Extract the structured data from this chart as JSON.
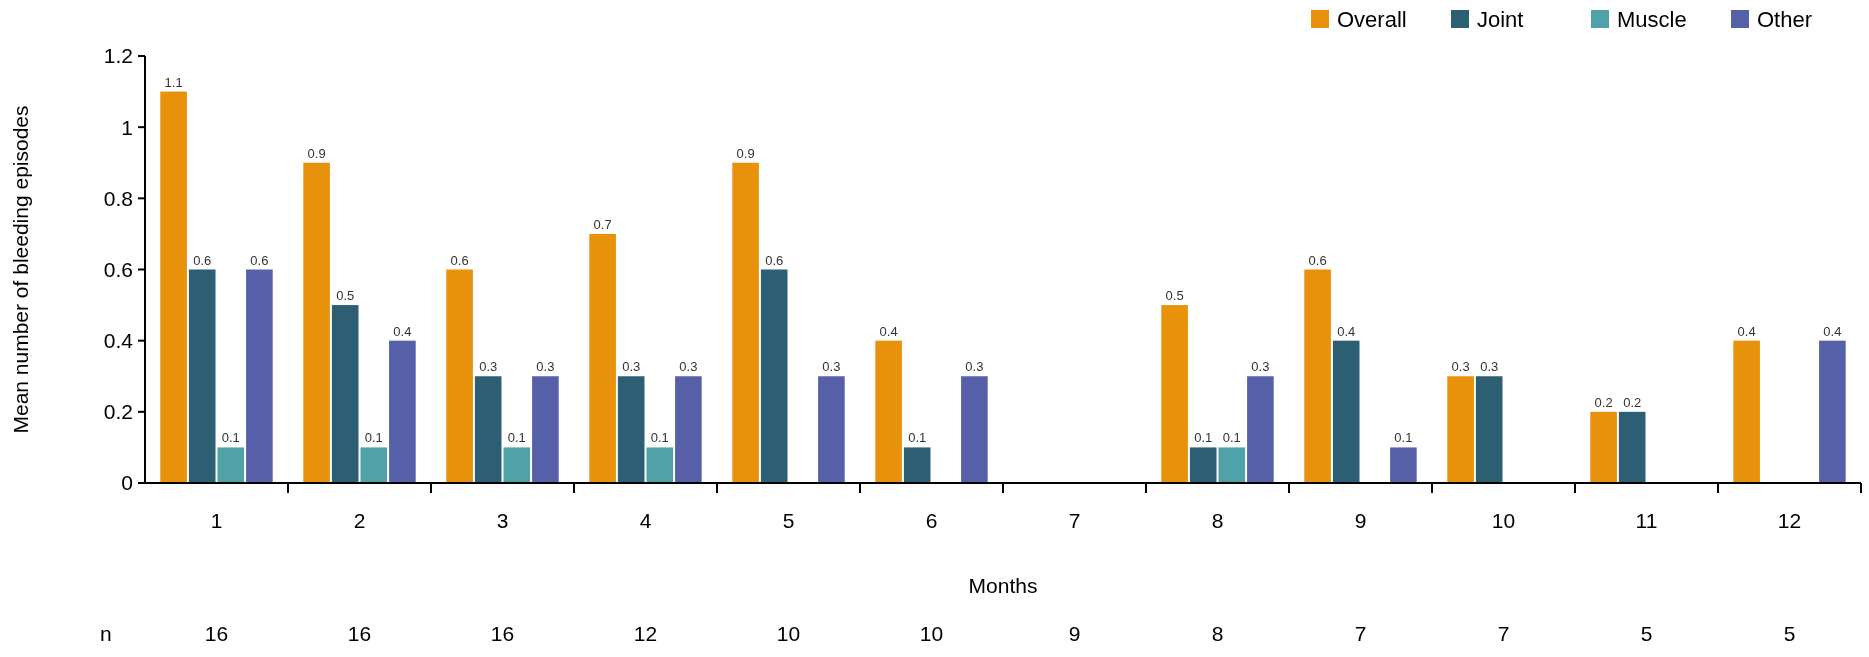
{
  "chart_data": {
    "type": "bar",
    "xlabel": "Months",
    "ylabel": "Mean number of bleeding episodes",
    "categories": [
      "1",
      "2",
      "3",
      "4",
      "5",
      "6",
      "7",
      "8",
      "9",
      "10",
      "11",
      "12"
    ],
    "series": [
      {
        "name": "Overall",
        "color": "#e8910a",
        "values": [
          1.1,
          0.9,
          0.6,
          0.7,
          0.9,
          0.4,
          null,
          0.5,
          0.6,
          0.3,
          0.2,
          0.4
        ]
      },
      {
        "name": "Joint",
        "color": "#2d5f74",
        "values": [
          0.6,
          0.5,
          0.3,
          0.3,
          0.6,
          0.1,
          null,
          0.1,
          0.4,
          0.3,
          0.2,
          null
        ]
      },
      {
        "name": "Muscle",
        "color": "#4fa3a8",
        "values": [
          0.1,
          0.1,
          0.1,
          0.1,
          null,
          null,
          null,
          0.1,
          null,
          null,
          null,
          null
        ]
      },
      {
        "name": "Other",
        "color": "#5560a8",
        "values": [
          0.6,
          0.4,
          0.3,
          0.3,
          0.3,
          0.3,
          null,
          0.3,
          0.1,
          null,
          null,
          0.4
        ]
      }
    ],
    "ylim": [
      0,
      1.2
    ],
    "yticks": [
      0,
      0.2,
      0.4,
      0.6,
      0.8,
      1,
      1.2
    ],
    "grid": false,
    "legend": "top right",
    "data_labels": true,
    "annotations": [
      "n",
      "16",
      "16",
      "16",
      "12",
      "10",
      "10",
      "9",
      "8",
      "7",
      "7",
      "5",
      "5"
    ]
  }
}
